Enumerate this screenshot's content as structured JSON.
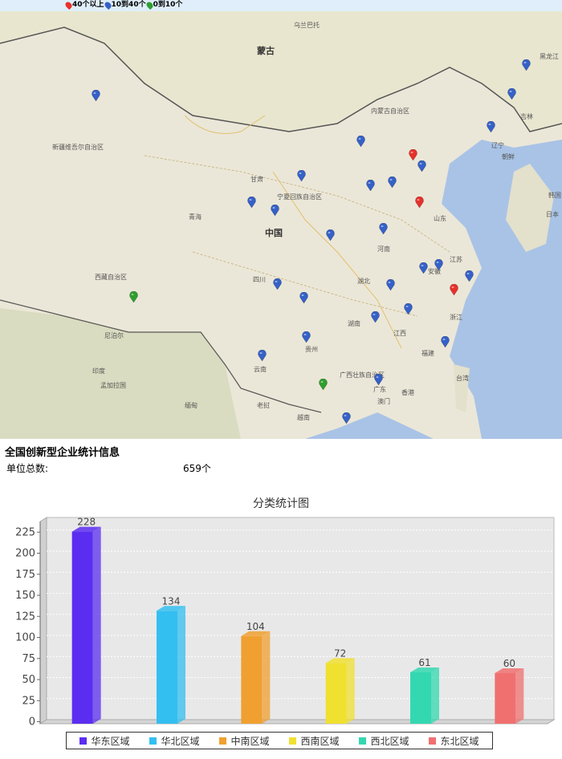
{
  "legend": [
    {
      "label": "40个以上",
      "color": "#e8302a"
    },
    {
      "label": "10到40个",
      "color": "#3561c8"
    },
    {
      "label": "0到10个",
      "color": "#2f9e2f"
    }
  ],
  "map": {
    "places": [
      "蒙古",
      "中国",
      "内蒙古自治区",
      "新疆维吾尔自治区",
      "西藏自治区",
      "青海",
      "甘肃",
      "宁夏回族自治区",
      "四川",
      "云南",
      "贵州",
      "湖南",
      "湖北",
      "河南",
      "山东",
      "江苏",
      "安徽",
      "浙江",
      "江西",
      "福建",
      "广东",
      "广西壮族自治区",
      "辽宁",
      "吉林",
      "黑龙江",
      "朝鲜",
      "韩国",
      "日本",
      "台湾",
      "香港",
      "澳门",
      "尼泊尔",
      "印度",
      "孟加拉国",
      "缅甸",
      "老挝",
      "越南",
      "乌兰巴托"
    ]
  },
  "info": {
    "title": "全国创新型企业统计信息",
    "total_label": "单位总数:",
    "total_value": "659个"
  },
  "chart_data": {
    "type": "bar",
    "title": "分类统计图",
    "categories": [
      "华东区域",
      "华北区域",
      "中南区域",
      "西南区域",
      "西北区域",
      "东北区域"
    ],
    "values": [
      228,
      134,
      104,
      72,
      61,
      60
    ],
    "colors": [
      "#5b2df0",
      "#33bff0",
      "#f0a030",
      "#f0e030",
      "#33d8b0",
      "#f07070"
    ],
    "ylim": [
      0,
      240
    ],
    "yticks": [
      0,
      25,
      50,
      75,
      100,
      125,
      150,
      175,
      200,
      225
    ],
    "grid": true,
    "legend_position": "bottom"
  }
}
